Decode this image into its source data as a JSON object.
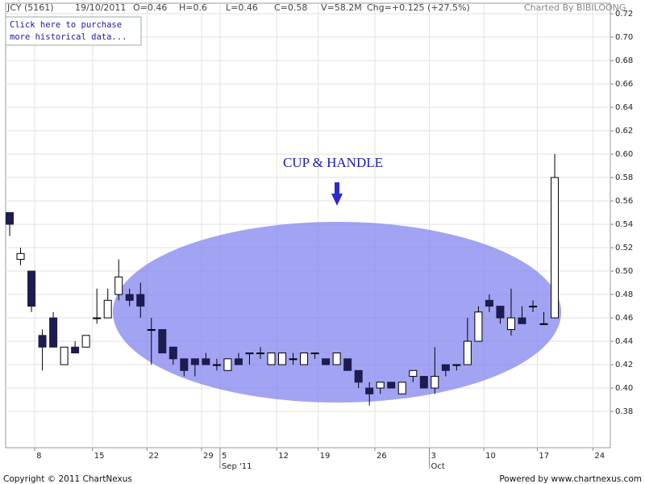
{
  "header": {
    "symbol": "JCY (5161)",
    "date": "19/10/2011",
    "open": "O=0.46",
    "high": "H=0.6",
    "low": "L=0.46",
    "close": "C=0.58",
    "volume": "V=58.2M",
    "change": "Chg=+0.125 (+27.5%)",
    "credit": "Charted By BIBILOONG"
  },
  "link": {
    "line1": "Click here to purchase",
    "line2": "more historical data..."
  },
  "footer": {
    "left": "Copyright © 2011 ChartNexus",
    "right": "Powered by www.chartnexus.com"
  },
  "chart_data": {
    "type": "candlestick",
    "annotation": "CUP & HANDLE",
    "categories": [
      null,
      null,
      null,
      null,
      null,
      null,
      null,
      null,
      null,
      null,
      null,
      null,
      null,
      null,
      null,
      null,
      null,
      null,
      null,
      null,
      null,
      null,
      null,
      null,
      null,
      null,
      null,
      null,
      null,
      null,
      null,
      null,
      null,
      null,
      null,
      null,
      null,
      null,
      null,
      null,
      null,
      null,
      null,
      null,
      null,
      null,
      null,
      null,
      null,
      null,
      null
    ],
    "open": [
      0.55,
      0.51,
      0.5,
      0.445,
      0.46,
      0.42,
      0.435,
      0.435,
      0.46,
      0.46,
      0.48,
      0.48,
      0.48,
      0.45,
      0.45,
      0.435,
      0.425,
      0.425,
      0.425,
      0.42,
      0.415,
      0.425,
      0.43,
      0.43,
      0.42,
      0.42,
      0.425,
      0.42,
      0.43,
      0.425,
      0.42,
      0.425,
      0.415,
      0.4,
      0.4,
      0.405,
      0.395,
      0.41,
      0.41,
      0.4,
      0.42,
      0.42,
      0.42,
      0.44,
      0.475,
      0.47,
      0.45,
      0.46,
      0.47,
      0.455,
      0.46
    ],
    "high": [
      0.55,
      0.52,
      0.5,
      0.45,
      0.465,
      0.435,
      0.44,
      0.445,
      0.485,
      0.485,
      0.51,
      0.485,
      0.49,
      0.46,
      0.45,
      0.435,
      0.425,
      0.425,
      0.43,
      0.425,
      0.425,
      0.43,
      0.43,
      0.435,
      0.43,
      0.43,
      0.43,
      0.43,
      0.43,
      0.425,
      0.43,
      0.425,
      0.415,
      0.405,
      0.405,
      0.405,
      0.405,
      0.415,
      0.41,
      0.435,
      0.42,
      0.42,
      0.46,
      0.47,
      0.48,
      0.47,
      0.485,
      0.47,
      0.475,
      0.465,
      0.6
    ],
    "low": [
      0.53,
      0.505,
      0.465,
      0.415,
      0.435,
      0.42,
      0.43,
      0.435,
      0.455,
      0.46,
      0.475,
      0.47,
      0.46,
      0.42,
      0.43,
      0.42,
      0.41,
      0.41,
      0.42,
      0.415,
      0.415,
      0.42,
      0.42,
      0.425,
      0.42,
      0.42,
      0.42,
      0.42,
      0.425,
      0.42,
      0.42,
      0.415,
      0.4,
      0.385,
      0.395,
      0.4,
      0.395,
      0.405,
      0.4,
      0.395,
      0.41,
      0.415,
      0.42,
      0.44,
      0.465,
      0.455,
      0.445,
      0.455,
      0.465,
      0.455,
      0.46
    ],
    "close": [
      0.54,
      0.515,
      0.47,
      0.435,
      0.435,
      0.435,
      0.43,
      0.445,
      0.46,
      0.475,
      0.495,
      0.475,
      0.47,
      0.45,
      0.43,
      0.425,
      0.415,
      0.42,
      0.42,
      0.42,
      0.425,
      0.42,
      0.43,
      0.43,
      0.43,
      0.43,
      0.425,
      0.43,
      0.43,
      0.42,
      0.43,
      0.415,
      0.405,
      0.395,
      0.405,
      0.4,
      0.405,
      0.415,
      0.4,
      0.41,
      0.415,
      0.42,
      0.44,
      0.465,
      0.47,
      0.46,
      0.46,
      0.455,
      0.47,
      0.455,
      0.58
    ],
    "up_color": "#ffffff",
    "down_color": "#1c1c50",
    "ylim": [
      0.349,
      0.729
    ],
    "yticks": [
      0.38,
      {
        "value": 0.4,
        "label": "0.40"
      },
      0.42,
      0.44,
      0.46,
      0.48,
      {
        "value": 0.5,
        "label": "0.50"
      },
      0.52,
      0.54,
      0.56,
      0.58,
      {
        "value": 0.6,
        "label": "0.60"
      },
      0.62,
      0.64,
      0.66,
      0.68,
      {
        "value": 0.7,
        "label": "0.70"
      },
      0.72
    ],
    "xlim": [
      -0.37,
      55.1
    ],
    "xticks": [
      {
        "value": 2.3,
        "label": "8"
      },
      {
        "value": 7.6,
        "label": "15"
      },
      {
        "value": 12.6,
        "label": "22"
      },
      {
        "value": 17.6,
        "label": "29"
      },
      {
        "value": 19.3,
        "label": "5"
      },
      {
        "value": 24.5,
        "label": "12"
      },
      {
        "value": 28.3,
        "label": "19"
      },
      {
        "value": 33.5,
        "label": "26"
      },
      {
        "value": 38.5,
        "label": "3"
      },
      {
        "value": 43.5,
        "label": "10"
      },
      {
        "value": 48.4,
        "label": "17"
      },
      {
        "value": 53.5,
        "label": "24"
      }
    ],
    "month_ticks": [
      {
        "value": 19.3,
        "label": "Sep '11"
      },
      {
        "value": 38.5,
        "label": "Oct"
      }
    ],
    "grid": true
  }
}
